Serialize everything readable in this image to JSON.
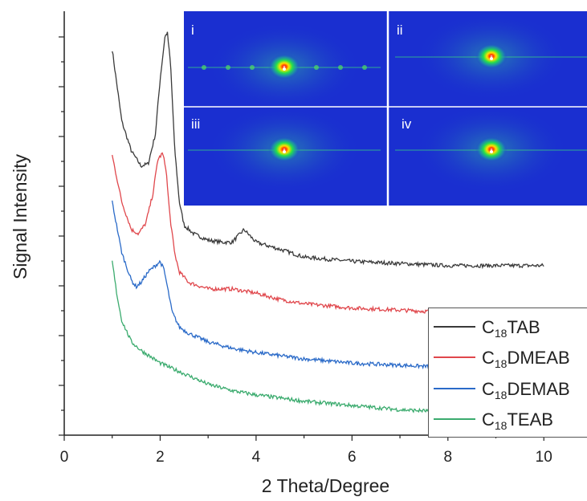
{
  "chart_data": {
    "type": "line",
    "title": "",
    "xlabel": "2 Theta/Degree",
    "ylabel": "Signal Intensity",
    "xlim": [
      0,
      10.9
    ],
    "ylim": [
      0,
      1
    ],
    "x_ticks": [
      "0",
      "2",
      "4",
      "6",
      "8",
      "10"
    ],
    "y_ticks_labeled": false,
    "legend_position": "bottom-right",
    "series": [
      {
        "name_prefix": "C",
        "name_subscript": "18",
        "name_suffix": "TAB",
        "color": "#3a3a3a",
        "x": [
          1.0,
          1.2,
          1.4,
          1.6,
          1.75,
          1.9,
          2.0,
          2.1,
          2.15,
          2.22,
          2.3,
          2.4,
          2.5,
          2.7,
          3.0,
          3.3,
          3.5,
          3.75,
          4.0,
          4.3,
          4.6,
          5.0,
          6.0,
          7.0,
          8.0,
          9.0,
          10.0
        ],
        "y": [
          0.91,
          0.74,
          0.67,
          0.635,
          0.64,
          0.71,
          0.84,
          0.94,
          0.95,
          0.87,
          0.68,
          0.55,
          0.495,
          0.475,
          0.46,
          0.455,
          0.455,
          0.485,
          0.455,
          0.445,
          0.435,
          0.42,
          0.41,
          0.405,
          0.4,
          0.4,
          0.4
        ]
      },
      {
        "name_prefix": "C",
        "name_subscript": "18",
        "name_suffix": "DMEAB",
        "color": "#e0474c",
        "x": [
          1.0,
          1.2,
          1.4,
          1.55,
          1.7,
          1.85,
          1.95,
          2.05,
          2.12,
          2.2,
          2.3,
          2.4,
          2.6,
          3.0,
          3.5,
          4.0,
          4.5,
          5.0,
          6.0,
          7.0,
          8.0,
          9.0,
          10.0
        ],
        "y": [
          0.66,
          0.55,
          0.485,
          0.475,
          0.5,
          0.57,
          0.65,
          0.665,
          0.63,
          0.52,
          0.43,
          0.385,
          0.36,
          0.345,
          0.345,
          0.335,
          0.32,
          0.31,
          0.3,
          0.295,
          0.29,
          0.285,
          0.28
        ]
      },
      {
        "name_prefix": "C",
        "name_subscript": "18",
        "name_suffix": "DEMAB",
        "color": "#2a6ac8",
        "x": [
          1.0,
          1.2,
          1.4,
          1.5,
          1.6,
          1.75,
          1.9,
          2.0,
          2.08,
          2.15,
          2.25,
          2.4,
          2.6,
          3.0,
          3.5,
          4.0,
          5.0,
          6.0,
          7.0,
          8.0,
          9.0,
          9.55
        ],
        "y": [
          0.55,
          0.43,
          0.365,
          0.35,
          0.36,
          0.385,
          0.4,
          0.41,
          0.39,
          0.35,
          0.29,
          0.255,
          0.24,
          0.22,
          0.205,
          0.195,
          0.18,
          0.17,
          0.165,
          0.16,
          0.16,
          0.16
        ]
      },
      {
        "name_prefix": "C",
        "name_subscript": "18",
        "name_suffix": "TEAB",
        "color": "#3bab6e",
        "x": [
          1.0,
          1.1,
          1.2,
          1.4,
          1.6,
          1.8,
          2.0,
          2.5,
          3.0,
          3.5,
          4.0,
          5.0,
          6.0,
          7.0,
          8.0,
          9.0,
          9.55
        ],
        "y": [
          0.41,
          0.33,
          0.27,
          0.22,
          0.2,
          0.185,
          0.17,
          0.145,
          0.12,
          0.105,
          0.095,
          0.08,
          0.07,
          0.06,
          0.055,
          0.05,
          0.05
        ]
      }
    ],
    "inset_panel_labels": [
      "i",
      "ii",
      "iii",
      "iv"
    ]
  },
  "colors": {
    "inset_background": "#1a2fd0",
    "inset_divider": "#ffffff"
  }
}
